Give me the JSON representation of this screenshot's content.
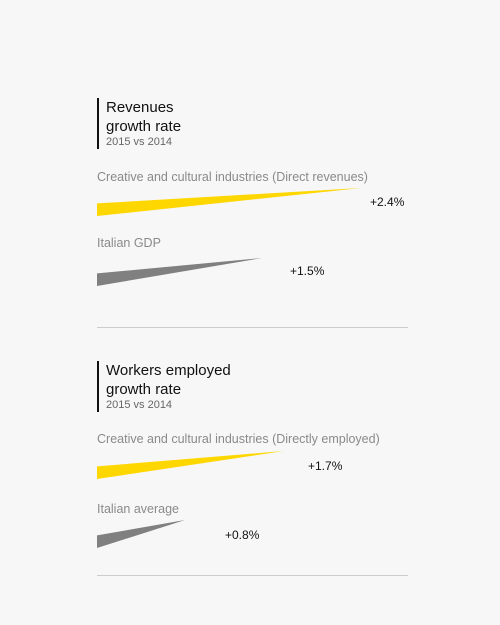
{
  "chart_data": [
    {
      "type": "bar",
      "title": "Revenues\ngrowth rate",
      "title_line1": "Revenues",
      "title_line2": "growth rate",
      "subtitle": "2015 vs 2014",
      "unit": "%",
      "categories": [
        "Creative and cultural industries (Direct revenues)",
        "Italian GDP"
      ],
      "values": [
        2.4,
        1.5
      ],
      "value_labels": [
        "+2.4%",
        "+1.5%"
      ],
      "colors": [
        "#ffd700",
        "#808080"
      ]
    },
    {
      "type": "bar",
      "title": "Workers employed\ngrowth rate",
      "title_line1": "Workers employed",
      "title_line2": "growth rate",
      "subtitle": "2015 vs 2014",
      "unit": "%",
      "categories": [
        "Creative and cultural industries (Directly employed)",
        "Italian average"
      ],
      "values": [
        1.7,
        0.8
      ],
      "value_labels": [
        "+1.7%",
        "+0.8%"
      ],
      "colors": [
        "#ffd700",
        "#808080"
      ]
    }
  ]
}
